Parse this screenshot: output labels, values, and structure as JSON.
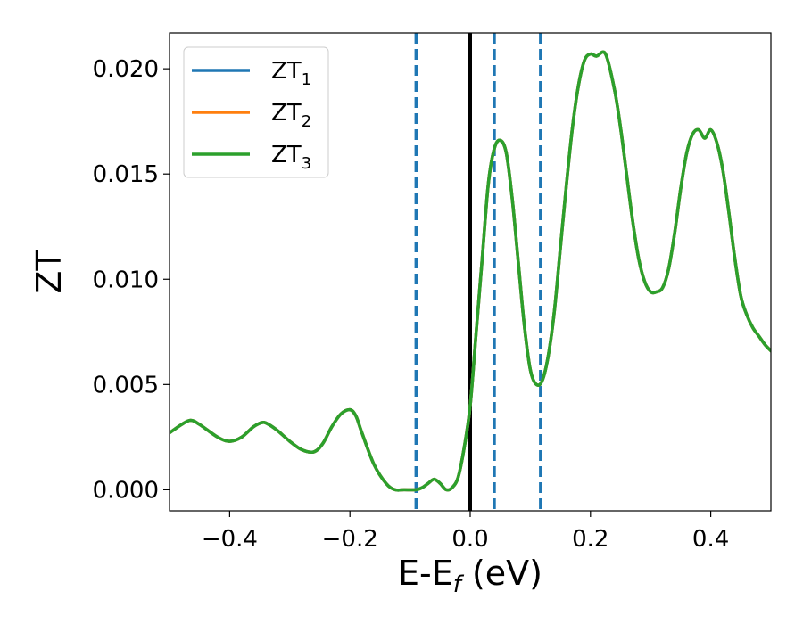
{
  "chart_data": {
    "type": "line",
    "title": "",
    "xlabel": {
      "main": "E-E",
      "sub": "f",
      "tail": " (eV)"
    },
    "ylabel": "ZT",
    "xlim": [
      -0.5,
      0.5
    ],
    "ylim": [
      -0.001,
      0.0217
    ],
    "xticks": [
      -0.4,
      -0.2,
      0.0,
      0.2,
      0.4
    ],
    "xtick_labels": [
      "−0.4",
      "−0.2",
      "0.0",
      "0.2",
      "0.4"
    ],
    "yticks": [
      0.0,
      0.005,
      0.01,
      0.015,
      0.02
    ],
    "ytick_labels": [
      "0.000",
      "0.005",
      "0.010",
      "0.015",
      "0.020"
    ],
    "grid": false,
    "legend_position": "top-left",
    "series": [
      {
        "name": "ZT",
        "sub": "1",
        "color": "#1f77b4"
      },
      {
        "name": "ZT",
        "sub": "2",
        "color": "#ff7f0e"
      },
      {
        "name": "ZT",
        "sub": "3",
        "color": "#2ca02c"
      }
    ],
    "curve": {
      "x": [
        -0.5,
        -0.48,
        -0.465,
        -0.45,
        -0.42,
        -0.4,
        -0.38,
        -0.36,
        -0.345,
        -0.335,
        -0.32,
        -0.3,
        -0.28,
        -0.26,
        -0.245,
        -0.23,
        -0.215,
        -0.2,
        -0.19,
        -0.18,
        -0.16,
        -0.14,
        -0.125,
        -0.11,
        -0.09,
        -0.08,
        -0.07,
        -0.06,
        -0.05,
        -0.04,
        -0.03,
        -0.02,
        -0.01,
        0.0,
        0.01,
        0.02,
        0.03,
        0.04,
        0.05,
        0.06,
        0.07,
        0.08,
        0.09,
        0.1,
        0.11,
        0.12,
        0.13,
        0.14,
        0.15,
        0.16,
        0.17,
        0.18,
        0.19,
        0.2,
        0.21,
        0.225,
        0.24,
        0.25,
        0.26,
        0.27,
        0.28,
        0.29,
        0.3,
        0.31,
        0.32,
        0.33,
        0.34,
        0.35,
        0.36,
        0.37,
        0.38,
        0.39,
        0.4,
        0.41,
        0.42,
        0.43,
        0.44,
        0.45,
        0.46,
        0.47,
        0.48,
        0.49,
        0.5
      ],
      "y": [
        0.0027,
        0.0031,
        0.0033,
        0.0031,
        0.0025,
        0.0023,
        0.0025,
        0.003,
        0.0032,
        0.0031,
        0.0028,
        0.0023,
        0.0019,
        0.0018,
        0.0022,
        0.003,
        0.0036,
        0.0038,
        0.0035,
        0.0027,
        0.0012,
        0.0003,
        0.0,
        0.0,
        0.0,
        0.0001,
        0.0003,
        0.0005,
        0.0003,
        0.0,
        0.0001,
        0.0006,
        0.002,
        0.004,
        0.0075,
        0.011,
        0.0145,
        0.0162,
        0.0166,
        0.016,
        0.0138,
        0.0108,
        0.0078,
        0.0057,
        0.005,
        0.0052,
        0.0064,
        0.0085,
        0.0115,
        0.0145,
        0.0172,
        0.0192,
        0.0204,
        0.0207,
        0.0206,
        0.0207,
        0.019,
        0.0172,
        0.015,
        0.0128,
        0.011,
        0.0099,
        0.0094,
        0.0094,
        0.0096,
        0.0105,
        0.0122,
        0.0143,
        0.016,
        0.0169,
        0.0171,
        0.0167,
        0.0171,
        0.0165,
        0.0152,
        0.0132,
        0.011,
        0.0092,
        0.0083,
        0.0077,
        0.0073,
        0.0069,
        0.0066
      ]
    },
    "vlines": [
      {
        "x": 0.0,
        "style": "solid",
        "color": "#000000"
      },
      {
        "x": -0.09,
        "style": "dashed",
        "color": "#1f77b4"
      },
      {
        "x": 0.04,
        "style": "dashed",
        "color": "#1f77b4"
      },
      {
        "x": 0.117,
        "style": "dashed",
        "color": "#1f77b4"
      }
    ]
  }
}
